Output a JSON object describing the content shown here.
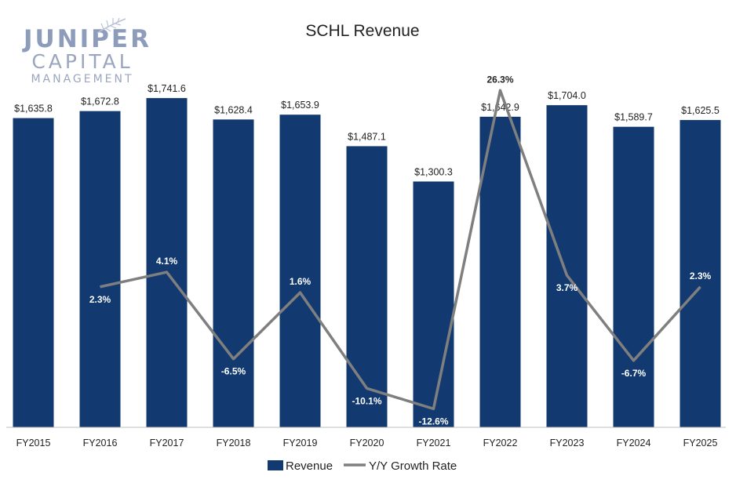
{
  "logo": {
    "line1": "JUNIPER",
    "line2": "CAPITAL",
    "line3": "MANAGEMENT"
  },
  "colors": {
    "bar": "#123a70",
    "line": "#7f7f7f",
    "text": "#222222",
    "label_on_bar": "#ffffff"
  },
  "chart_data": {
    "type": "bar",
    "title": "SCHL Revenue",
    "categories": [
      "FY2015",
      "FY2016",
      "FY2017",
      "FY2018",
      "FY2019",
      "FY2020",
      "FY2021",
      "FY2022",
      "FY2023",
      "FY2024",
      "FY2025"
    ],
    "legend_position": "bottom",
    "grid": false,
    "series": [
      {
        "name": "Revenue",
        "kind": "bar",
        "values": [
          1635.8,
          1672.8,
          1741.6,
          1628.4,
          1653.9,
          1487.1,
          1300.3,
          1642.9,
          1704.0,
          1589.7,
          1625.5
        ],
        "labels": [
          "$1,635.8",
          "$1,672.8",
          "$1,741.6",
          "$1,628.4",
          "$1,653.9",
          "$1,487.1",
          "$1,300.3",
          "$1,642.9",
          "$1,704.0",
          "$1,589.7",
          "$1,625.5"
        ],
        "ylim": [
          0,
          1800
        ]
      },
      {
        "name": "Y/Y Growth Rate",
        "kind": "line",
        "values": [
          null,
          2.3,
          4.1,
          -6.5,
          1.6,
          -10.1,
          -12.6,
          26.3,
          3.7,
          -6.7,
          2.3
        ],
        "labels": [
          "",
          "2.3%",
          "4.1%",
          "-6.5%",
          "1.6%",
          "-10.1%",
          "-12.6%",
          "26.3%",
          "3.7%",
          "-6.7%",
          "2.3%"
        ],
        "ylim": [
          -14,
          27
        ]
      }
    ]
  }
}
